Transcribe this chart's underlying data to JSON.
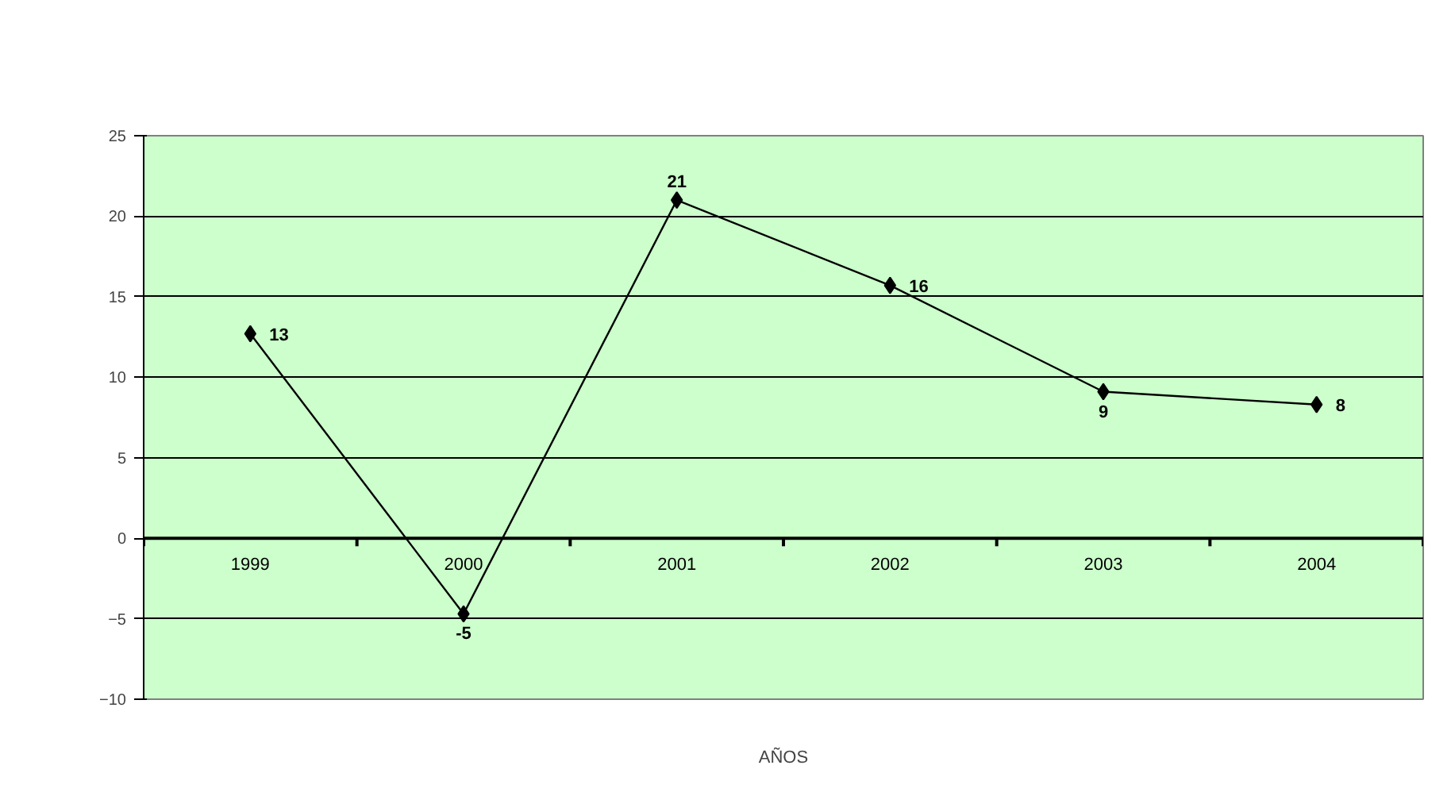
{
  "chart_data": {
    "type": "line",
    "xlabel": "AÑOS",
    "categories": [
      "1999",
      "2000",
      "2001",
      "2002",
      "2003",
      "2004"
    ],
    "series": [
      {
        "color": "#000000",
        "values": [
          12.7,
          -4.7,
          21.0,
          15.7,
          9.1,
          8.3
        ],
        "value_labels": [
          "13",
          "-5",
          "21",
          "16",
          "9",
          "8"
        ]
      }
    ],
    "ylim": [
      -10,
      25
    ],
    "yticks": [
      -10,
      -5,
      0,
      5,
      10,
      15,
      20,
      25
    ],
    "grid": "y",
    "marker": "diamond",
    "line_style": "solid"
  }
}
